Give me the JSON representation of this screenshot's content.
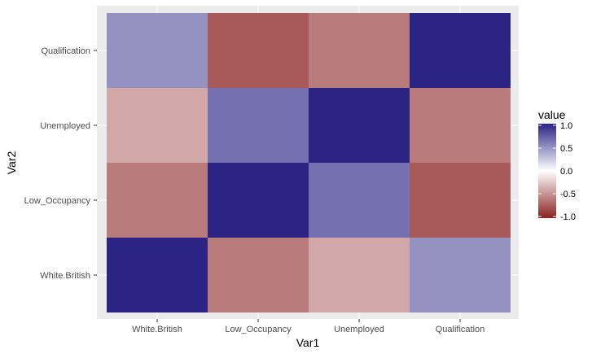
{
  "chart_data": {
    "type": "heatmap",
    "xlabel": "Var1",
    "ylabel": "Var2",
    "x_categories": [
      "White.British",
      "Low_Occupancy",
      "Unemployed",
      "Qualification"
    ],
    "y_categories": [
      "White.British",
      "Low_Occupancy",
      "Unemployed",
      "Qualification"
    ],
    "cells": [
      {
        "x": "White.British",
        "y": "White.British",
        "value": 1.0
      },
      {
        "x": "Low_Occupancy",
        "y": "White.British",
        "value": -0.6
      },
      {
        "x": "Unemployed",
        "y": "White.British",
        "value": -0.4
      },
      {
        "x": "Qualification",
        "y": "White.British",
        "value": 0.5
      },
      {
        "x": "White.British",
        "y": "Low_Occupancy",
        "value": -0.6
      },
      {
        "x": "Low_Occupancy",
        "y": "Low_Occupancy",
        "value": 1.0
      },
      {
        "x": "Unemployed",
        "y": "Low_Occupancy",
        "value": 0.65
      },
      {
        "x": "Qualification",
        "y": "Low_Occupancy",
        "value": -0.75
      },
      {
        "x": "White.British",
        "y": "Unemployed",
        "value": -0.4
      },
      {
        "x": "Low_Occupancy",
        "y": "Unemployed",
        "value": 0.65
      },
      {
        "x": "Unemployed",
        "y": "Unemployed",
        "value": 1.0
      },
      {
        "x": "Qualification",
        "y": "Unemployed",
        "value": -0.6
      },
      {
        "x": "White.British",
        "y": "Qualification",
        "value": 0.5
      },
      {
        "x": "Low_Occupancy",
        "y": "Qualification",
        "value": -0.75
      },
      {
        "x": "Unemployed",
        "y": "Qualification",
        "value": -0.6
      },
      {
        "x": "Qualification",
        "y": "Qualification",
        "value": 1.0
      }
    ],
    "legend": {
      "title": "value",
      "breaks": [
        1.0,
        0.5,
        0.0,
        -0.5,
        -1.0
      ],
      "break_labels": [
        "1.0",
        "0.5",
        "0.0",
        "-0.5",
        "-1.0"
      ],
      "limits": [
        -1.0,
        1.0
      ],
      "placement": "right"
    },
    "colors": {
      "low": "#8b2323",
      "mid": "#ffffff",
      "high": "#2b2485",
      "panel_background": "#ebebeb",
      "grid": "#ffffff"
    }
  }
}
